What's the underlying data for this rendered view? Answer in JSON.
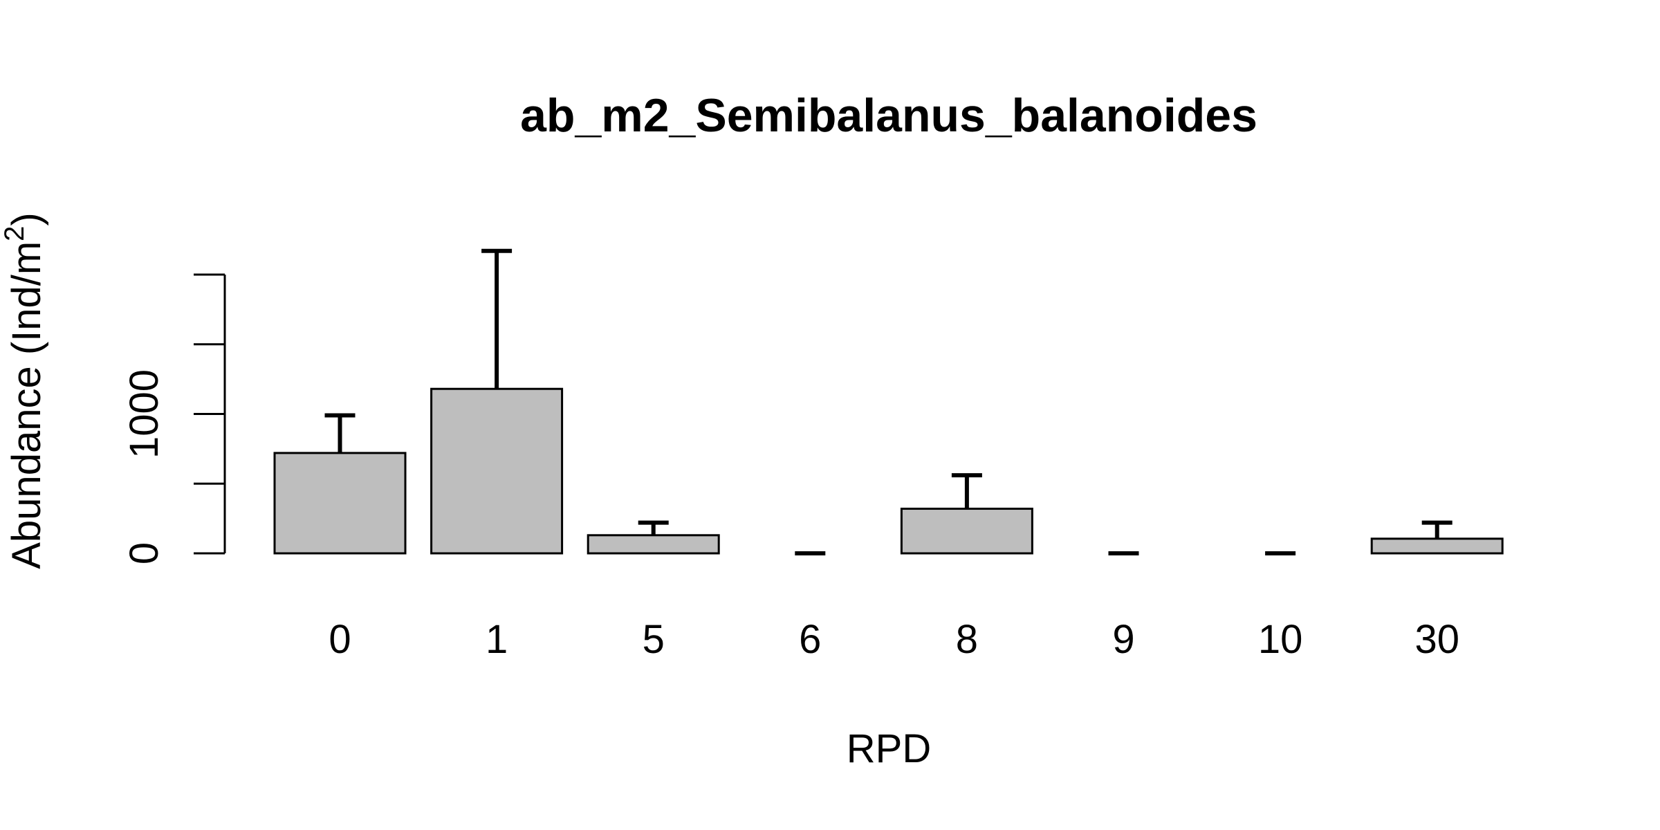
{
  "chart_data": {
    "type": "bar",
    "title": "ab_m2_Semibalanus_balanoides",
    "xlabel": "RPD",
    "ylabel": "Abundance (Ind/m",
    "ylabel_sup": "2",
    "ylabel_close": ")",
    "categories": [
      "0",
      "1",
      "5",
      "6",
      "8",
      "9",
      "10",
      "30"
    ],
    "values": [
      720,
      1180,
      130,
      0,
      320,
      0,
      0,
      105
    ],
    "error_upper": [
      990,
      2170,
      220,
      0,
      560,
      0,
      0,
      220
    ],
    "ylim": [
      0,
      2000
    ],
    "yticks": [
      0,
      500,
      1000,
      1500,
      2000
    ],
    "ytick_labels": [
      "0",
      "",
      "1000",
      "",
      ""
    ],
    "colors": {
      "bar_fill": "#bebebe",
      "bar_stroke": "#000000"
    },
    "grid": false
  }
}
